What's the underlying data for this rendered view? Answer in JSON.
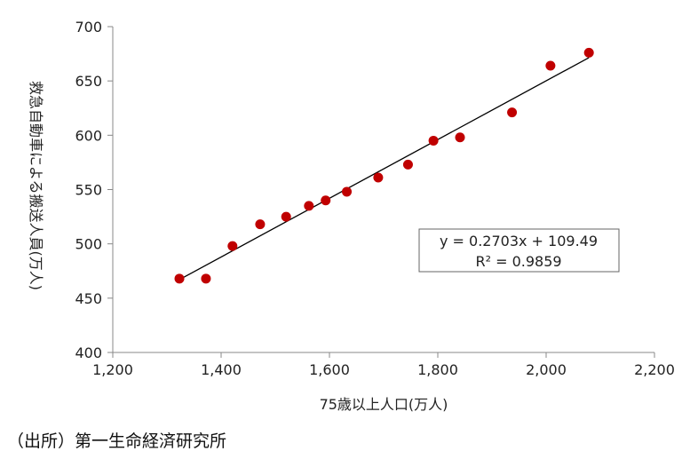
{
  "chart_data": {
    "type": "scatter",
    "title": "",
    "xlabel": "75歳以上人口(万人)",
    "ylabel": "救急自動車による搬送人員(万人)",
    "xlim": [
      1200,
      2200
    ],
    "ylim": [
      400,
      700
    ],
    "x_ticks": [
      1200,
      1400,
      1600,
      1800,
      2000,
      2200
    ],
    "x_tick_labels": [
      "1,200",
      "1,400",
      "1,600",
      "1,800",
      "2,000",
      "2,200"
    ],
    "y_ticks": [
      400,
      450,
      500,
      550,
      600,
      650,
      700
    ],
    "y_tick_labels": [
      "400",
      "450",
      "500",
      "550",
      "600",
      "650",
      "700"
    ],
    "grid": false,
    "legend": "none",
    "marker_color": "#c00000",
    "series": [
      {
        "points": [
          {
            "x": 1323,
            "y": 468
          },
          {
            "x": 1372,
            "y": 468
          },
          {
            "x": 1421,
            "y": 498
          },
          {
            "x": 1472,
            "y": 518
          },
          {
            "x": 1520,
            "y": 525
          },
          {
            "x": 1562,
            "y": 535
          },
          {
            "x": 1593,
            "y": 540
          },
          {
            "x": 1632,
            "y": 548
          },
          {
            "x": 1690,
            "y": 561
          },
          {
            "x": 1745,
            "y": 573
          },
          {
            "x": 1792,
            "y": 595
          },
          {
            "x": 1841,
            "y": 598
          },
          {
            "x": 1937,
            "y": 621
          },
          {
            "x": 2008,
            "y": 664
          },
          {
            "x": 2079,
            "y": 676
          }
        ]
      }
    ],
    "trendline": {
      "slope": 0.2703,
      "intercept": 109.49,
      "x_range": [
        1323,
        2079
      ],
      "equation": "y = 0.2703x + 109.49",
      "r_squared": "R² = 0.9859"
    }
  },
  "source": "（出所）第一生命経済研究所"
}
